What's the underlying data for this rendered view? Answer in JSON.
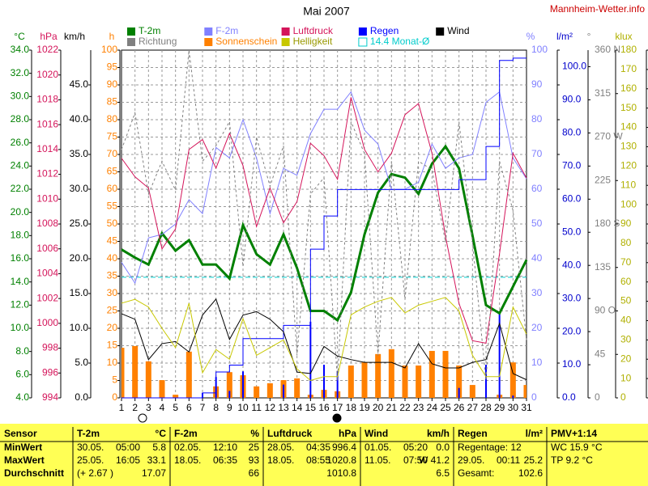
{
  "chart_data": {
    "type": "line",
    "title": "Mai 2007",
    "source": "Mannheim-Wetter.info",
    "x": [
      1,
      2,
      3,
      4,
      5,
      6,
      7,
      8,
      9,
      10,
      11,
      12,
      13,
      14,
      15,
      16,
      17,
      18,
      19,
      20,
      21,
      22,
      23,
      24,
      25,
      26,
      27,
      28,
      29,
      30,
      31
    ],
    "xlim": [
      1,
      31
    ],
    "grid": true,
    "axes": [
      {
        "label": "°C",
        "side": "left",
        "color": "#008000",
        "lim": [
          4,
          34
        ],
        "ticks": [
          {
            "value": 4,
            "label": "4.0"
          },
          {
            "value": 6,
            "label": "6.0"
          },
          {
            "value": 8,
            "label": "8.0"
          },
          {
            "value": 10,
            "label": "10.0"
          },
          {
            "value": 12,
            "label": "12.0"
          },
          {
            "value": 14,
            "label": "14.0"
          },
          {
            "value": 16,
            "label": "16.0"
          },
          {
            "value": 18,
            "label": "18.0"
          },
          {
            "value": 20,
            "label": "20.0"
          },
          {
            "value": 22,
            "label": "22.0"
          },
          {
            "value": 24,
            "label": "24.0"
          },
          {
            "value": 26,
            "label": "26.0"
          },
          {
            "value": 28,
            "label": "28.0"
          },
          {
            "value": 30,
            "label": "30.0"
          },
          {
            "value": 32,
            "label": "32.0"
          },
          {
            "value": 34,
            "label": "34.0"
          }
        ]
      },
      {
        "label": "hPa",
        "side": "left",
        "color": "#d4145a",
        "lim": [
          994,
          1022
        ],
        "ticks": [
          994,
          996,
          998,
          1000,
          1002,
          1004,
          1006,
          1008,
          1010,
          1012,
          1014,
          1016,
          1018,
          1020,
          1022
        ]
      },
      {
        "label": "km/h",
        "side": "left",
        "color": "#000000",
        "lim": [
          0,
          50
        ],
        "ticks": [
          {
            "value": 0,
            "label": "0.0"
          },
          {
            "value": 5,
            "label": "5.0"
          },
          {
            "value": 10,
            "label": "10.0"
          },
          {
            "value": 15,
            "label": "15.0"
          },
          {
            "value": 20,
            "label": "20.0"
          },
          {
            "value": 25,
            "label": "25.0"
          },
          {
            "value": 30,
            "label": "30.0"
          },
          {
            "value": 35,
            "label": "35.0"
          },
          {
            "value": 40,
            "label": "40.0"
          },
          {
            "value": 45,
            "label": "45.0"
          }
        ]
      },
      {
        "label": "h",
        "side": "left",
        "color": "#ff8000",
        "lim": [
          0,
          100
        ],
        "ticks": [
          0,
          5,
          10,
          15,
          20,
          25,
          30,
          35,
          40,
          45,
          50,
          55,
          60,
          65,
          70,
          75,
          80,
          85,
          90,
          95,
          100
        ]
      },
      {
        "label": "%",
        "side": "right",
        "color": "#8080ff",
        "lim": [
          0,
          100
        ],
        "ticks": [
          0,
          10,
          20,
          30,
          40,
          50,
          60,
          70,
          80,
          90,
          100
        ]
      },
      {
        "label": "l/m²",
        "side": "right",
        "color": "#0000cc",
        "lim": [
          0,
          105
        ],
        "ticks": [
          {
            "value": 0,
            "label": "0.0"
          },
          {
            "value": 10,
            "label": "10.0"
          },
          {
            "value": 20,
            "label": "20.0"
          },
          {
            "value": 30,
            "label": "30.0"
          },
          {
            "value": 40,
            "label": "40.0"
          },
          {
            "value": 50,
            "label": "50.0"
          },
          {
            "value": 60,
            "label": "60.0"
          },
          {
            "value": 70,
            "label": "70.0"
          },
          {
            "value": 80,
            "label": "80.0"
          },
          {
            "value": 90,
            "label": "90.0"
          },
          {
            "value": 100,
            "label": "100.0"
          }
        ]
      },
      {
        "label": "°",
        "side": "right",
        "color": "#808080",
        "lim": [
          0,
          360
        ],
        "ticks": [
          0,
          45,
          {
            "value": 90,
            "label": "90 O"
          },
          135,
          {
            "value": 180,
            "label": "180 S"
          },
          225,
          {
            "value": 270,
            "label": "270 W"
          },
          315,
          {
            "value": 360,
            "label": "360 N"
          }
        ]
      },
      {
        "label": "klux",
        "side": "right",
        "color": "#b0b000",
        "lim": [
          0,
          180
        ],
        "ticks": [
          0,
          10,
          20,
          30,
          40,
          50,
          60,
          70,
          80,
          90,
          100,
          110,
          120,
          130,
          140,
          150,
          160,
          170,
          180
        ]
      }
    ],
    "series": [
      {
        "name": "T-2m",
        "color": "#008000",
        "axis": 0,
        "style": "thick",
        "values": [
          16.8,
          16.1,
          15.5,
          18.2,
          16.7,
          17.6,
          15.5,
          15.5,
          14.3,
          18.9,
          16.4,
          15.5,
          18.1,
          15.2,
          11.5,
          11.5,
          10.7,
          13.1,
          18.1,
          21.7,
          23.3,
          23.0,
          21.6,
          24.2,
          25.7,
          23.8,
          18.0,
          12.0,
          11.3,
          13.6,
          15.9
        ]
      },
      {
        "name": "F-2m",
        "color": "#8080ff",
        "axis": 4,
        "style": "line",
        "values": [
          39,
          33,
          46,
          47,
          50,
          57,
          53,
          72,
          69,
          80,
          69,
          53,
          66,
          64,
          76,
          83,
          83,
          88,
          77,
          73,
          60,
          60,
          62,
          73,
          66,
          69,
          70,
          85,
          88,
          69,
          63
        ]
      },
      {
        "name": "Luftdruck",
        "color": "#d4145a",
        "axis": 1,
        "style": "line",
        "values": [
          1013.3,
          1011.8,
          1010.9,
          1006.0,
          1007.6,
          1014.0,
          1014.8,
          1012.5,
          1015.3,
          1012.7,
          1007.8,
          1010.9,
          1008.1,
          1009.8,
          1014.5,
          1013.5,
          1011.6,
          1018.2,
          1014.0,
          1012.2,
          1013.7,
          1016.8,
          1017.7,
          1013.7,
          1007.0,
          1001.6,
          998.6,
          998.4,
          1005.6,
          1013.7,
          1011.7
        ]
      },
      {
        "name": "Regen",
        "color": "#0000ff",
        "axis": 5,
        "style": "step",
        "values": [
          0,
          0,
          0,
          0,
          0,
          0,
          1.5,
          7.8,
          9.9,
          17.9,
          17.9,
          17.9,
          21.9,
          21.9,
          44.9,
          54.9,
          62.9,
          62.9,
          62.9,
          62.9,
          62.9,
          62.9,
          62.9,
          62.9,
          62.9,
          65.9,
          65.9,
          75.9,
          101.9,
          102.6,
          102.6
        ]
      },
      {
        "name": "Wind",
        "color": "#000000",
        "axis": 2,
        "style": "line",
        "values": [
          12.1,
          11.3,
          5.5,
          7.8,
          8.1,
          6.6,
          11.9,
          14.2,
          8.4,
          11.9,
          12.4,
          11.3,
          9.5,
          3.7,
          3.5,
          7.4,
          6.0,
          5.5,
          5.1,
          5.1,
          5.1,
          4.3,
          7.8,
          4.9,
          4.3,
          4.3,
          5.1,
          5.5,
          10.7,
          3.5,
          2.6
        ]
      },
      {
        "name": "Richtung",
        "color": "#808080",
        "axis": 6,
        "style": "dashed",
        "values": [
          257,
          295,
          211,
          245,
          215,
          360,
          245,
          261,
          286,
          136,
          270,
          219,
          261,
          44,
          211,
          228,
          18,
          286,
          253,
          44,
          245,
          102,
          245,
          236,
          161,
          286,
          161,
          18,
          245,
          194,
          60
        ]
      },
      {
        "name": "Sonnenschein",
        "color": "#ff8000",
        "axis": 3,
        "style": "bar",
        "values": [
          14.4,
          14.9,
          10.5,
          5.1,
          0.9,
          13.3,
          0,
          3.3,
          7.4,
          6.5,
          3.3,
          4.2,
          5.1,
          5.6,
          0.9,
          2.3,
          1.9,
          9.3,
          10.2,
          12.6,
          14.0,
          9.3,
          9.3,
          13.5,
          13.5,
          9.3,
          3.7,
          0,
          0.9,
          10.2,
          3.7
        ]
      },
      {
        "name": "Helligkeit",
        "color": "#c8c800",
        "axis": 7,
        "style": "line",
        "values": [
          49,
          51,
          47,
          36,
          26,
          49,
          13,
          25,
          20,
          41,
          22,
          26,
          30,
          15,
          9,
          11,
          11,
          43,
          47,
          50,
          52,
          44,
          48,
          50,
          52,
          45,
          22,
          11,
          11,
          47,
          33
        ]
      }
    ],
    "rain_bars": {
      "color": "#0000ff",
      "axis": 5,
      "values": [
        0,
        0,
        0,
        0,
        0,
        0,
        1.5,
        6.3,
        2.1,
        8,
        0,
        0,
        4,
        0,
        23,
        10,
        8,
        0,
        0,
        0,
        0,
        0,
        0,
        0,
        0,
        3,
        0,
        10,
        26,
        0.7,
        0
      ]
    },
    "monthly_mean": {
      "value": 14.4,
      "label": "Monat-Ø",
      "axis": 0,
      "color": "#00cccc"
    }
  },
  "table": {
    "header": [
      [
        "Sensor"
      ],
      [
        "T-2m",
        "°C"
      ],
      [
        "F-2m",
        "%"
      ],
      [
        "Luftdruck",
        "hPa"
      ],
      [
        "Wind",
        "km/h"
      ],
      [
        "Regen",
        "l/m²"
      ],
      [
        "PMV+1:14"
      ]
    ],
    "rows": [
      [
        [
          "MinWert"
        ],
        [
          "30.05.",
          "05:00",
          "5.8"
        ],
        [
          "02.05.",
          "12:10",
          "25"
        ],
        [
          "28.05.",
          "04:35",
          "996.4"
        ],
        [
          "01.05.",
          "05:20",
          "0.0"
        ],
        [
          "Regentage: 12"
        ],
        [
          "WC 15.9 °C"
        ]
      ],
      [
        [
          "MaxWert"
        ],
        [
          "25.05.",
          "16:05",
          "33.1"
        ],
        [
          "18.05.",
          "06:35",
          "93"
        ],
        [
          "18.05.",
          "08:55",
          "1020.8"
        ],
        [
          "11.05.",
          "07:50",
          "W 41.2"
        ],
        [
          "29.05.",
          "00:11",
          "25.2"
        ],
        [
          "TP 9.2 °C"
        ]
      ],
      [
        [
          "Durchschnitt"
        ],
        [
          "(+ 2.67 )",
          "17.07"
        ],
        [
          "66"
        ],
        [
          "1010.8"
        ],
        [
          "6.5"
        ],
        [
          "Gesamt:",
          "102.6"
        ],
        []
      ]
    ]
  }
}
